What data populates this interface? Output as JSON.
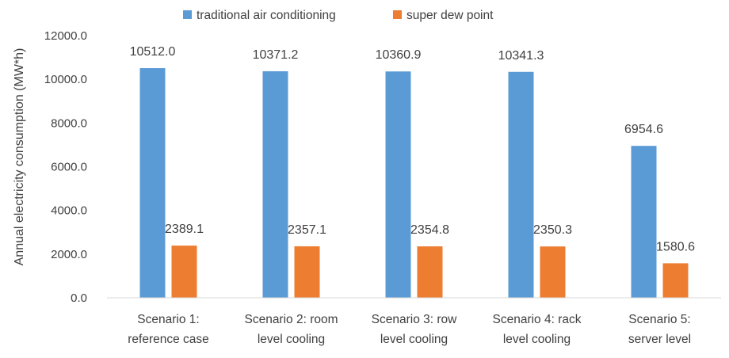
{
  "chart_data": {
    "type": "bar",
    "title": "",
    "xlabel": "",
    "ylabel": "Annual electricity consumption (MW*h)",
    "ylim": [
      0,
      12000
    ],
    "yticks": [
      0,
      2000,
      4000,
      6000,
      8000,
      10000,
      12000
    ],
    "ytick_labels": [
      "0.0",
      "2000.0",
      "4000.0",
      "6000.0",
      "8000.0",
      "10000.0",
      "12000.0"
    ],
    "grid": false,
    "legend_position": "top",
    "categories": [
      [
        "Scenario 1:",
        "reference case"
      ],
      [
        "Scenario 2: room",
        "level cooling"
      ],
      [
        "Scenario 3: row",
        "level cooling"
      ],
      [
        "Scenario 4: rack",
        "level cooling"
      ],
      [
        "Scenario 5:",
        "server level"
      ]
    ],
    "series": [
      {
        "name": "traditional air conditioning",
        "color": "#5b9bd5",
        "values": [
          10512.0,
          10371.2,
          10360.9,
          10341.3,
          6954.6
        ],
        "labels": [
          "10512.0",
          "10371.2",
          "10360.9",
          "10341.3",
          "6954.6"
        ]
      },
      {
        "name": "super dew point",
        "color": "#ed7d31",
        "values": [
          2389.1,
          2357.1,
          2354.8,
          2350.3,
          1580.6
        ],
        "labels": [
          "2389.1",
          "2357.1",
          "2354.8",
          "2350.3",
          "1580.6"
        ]
      }
    ]
  }
}
